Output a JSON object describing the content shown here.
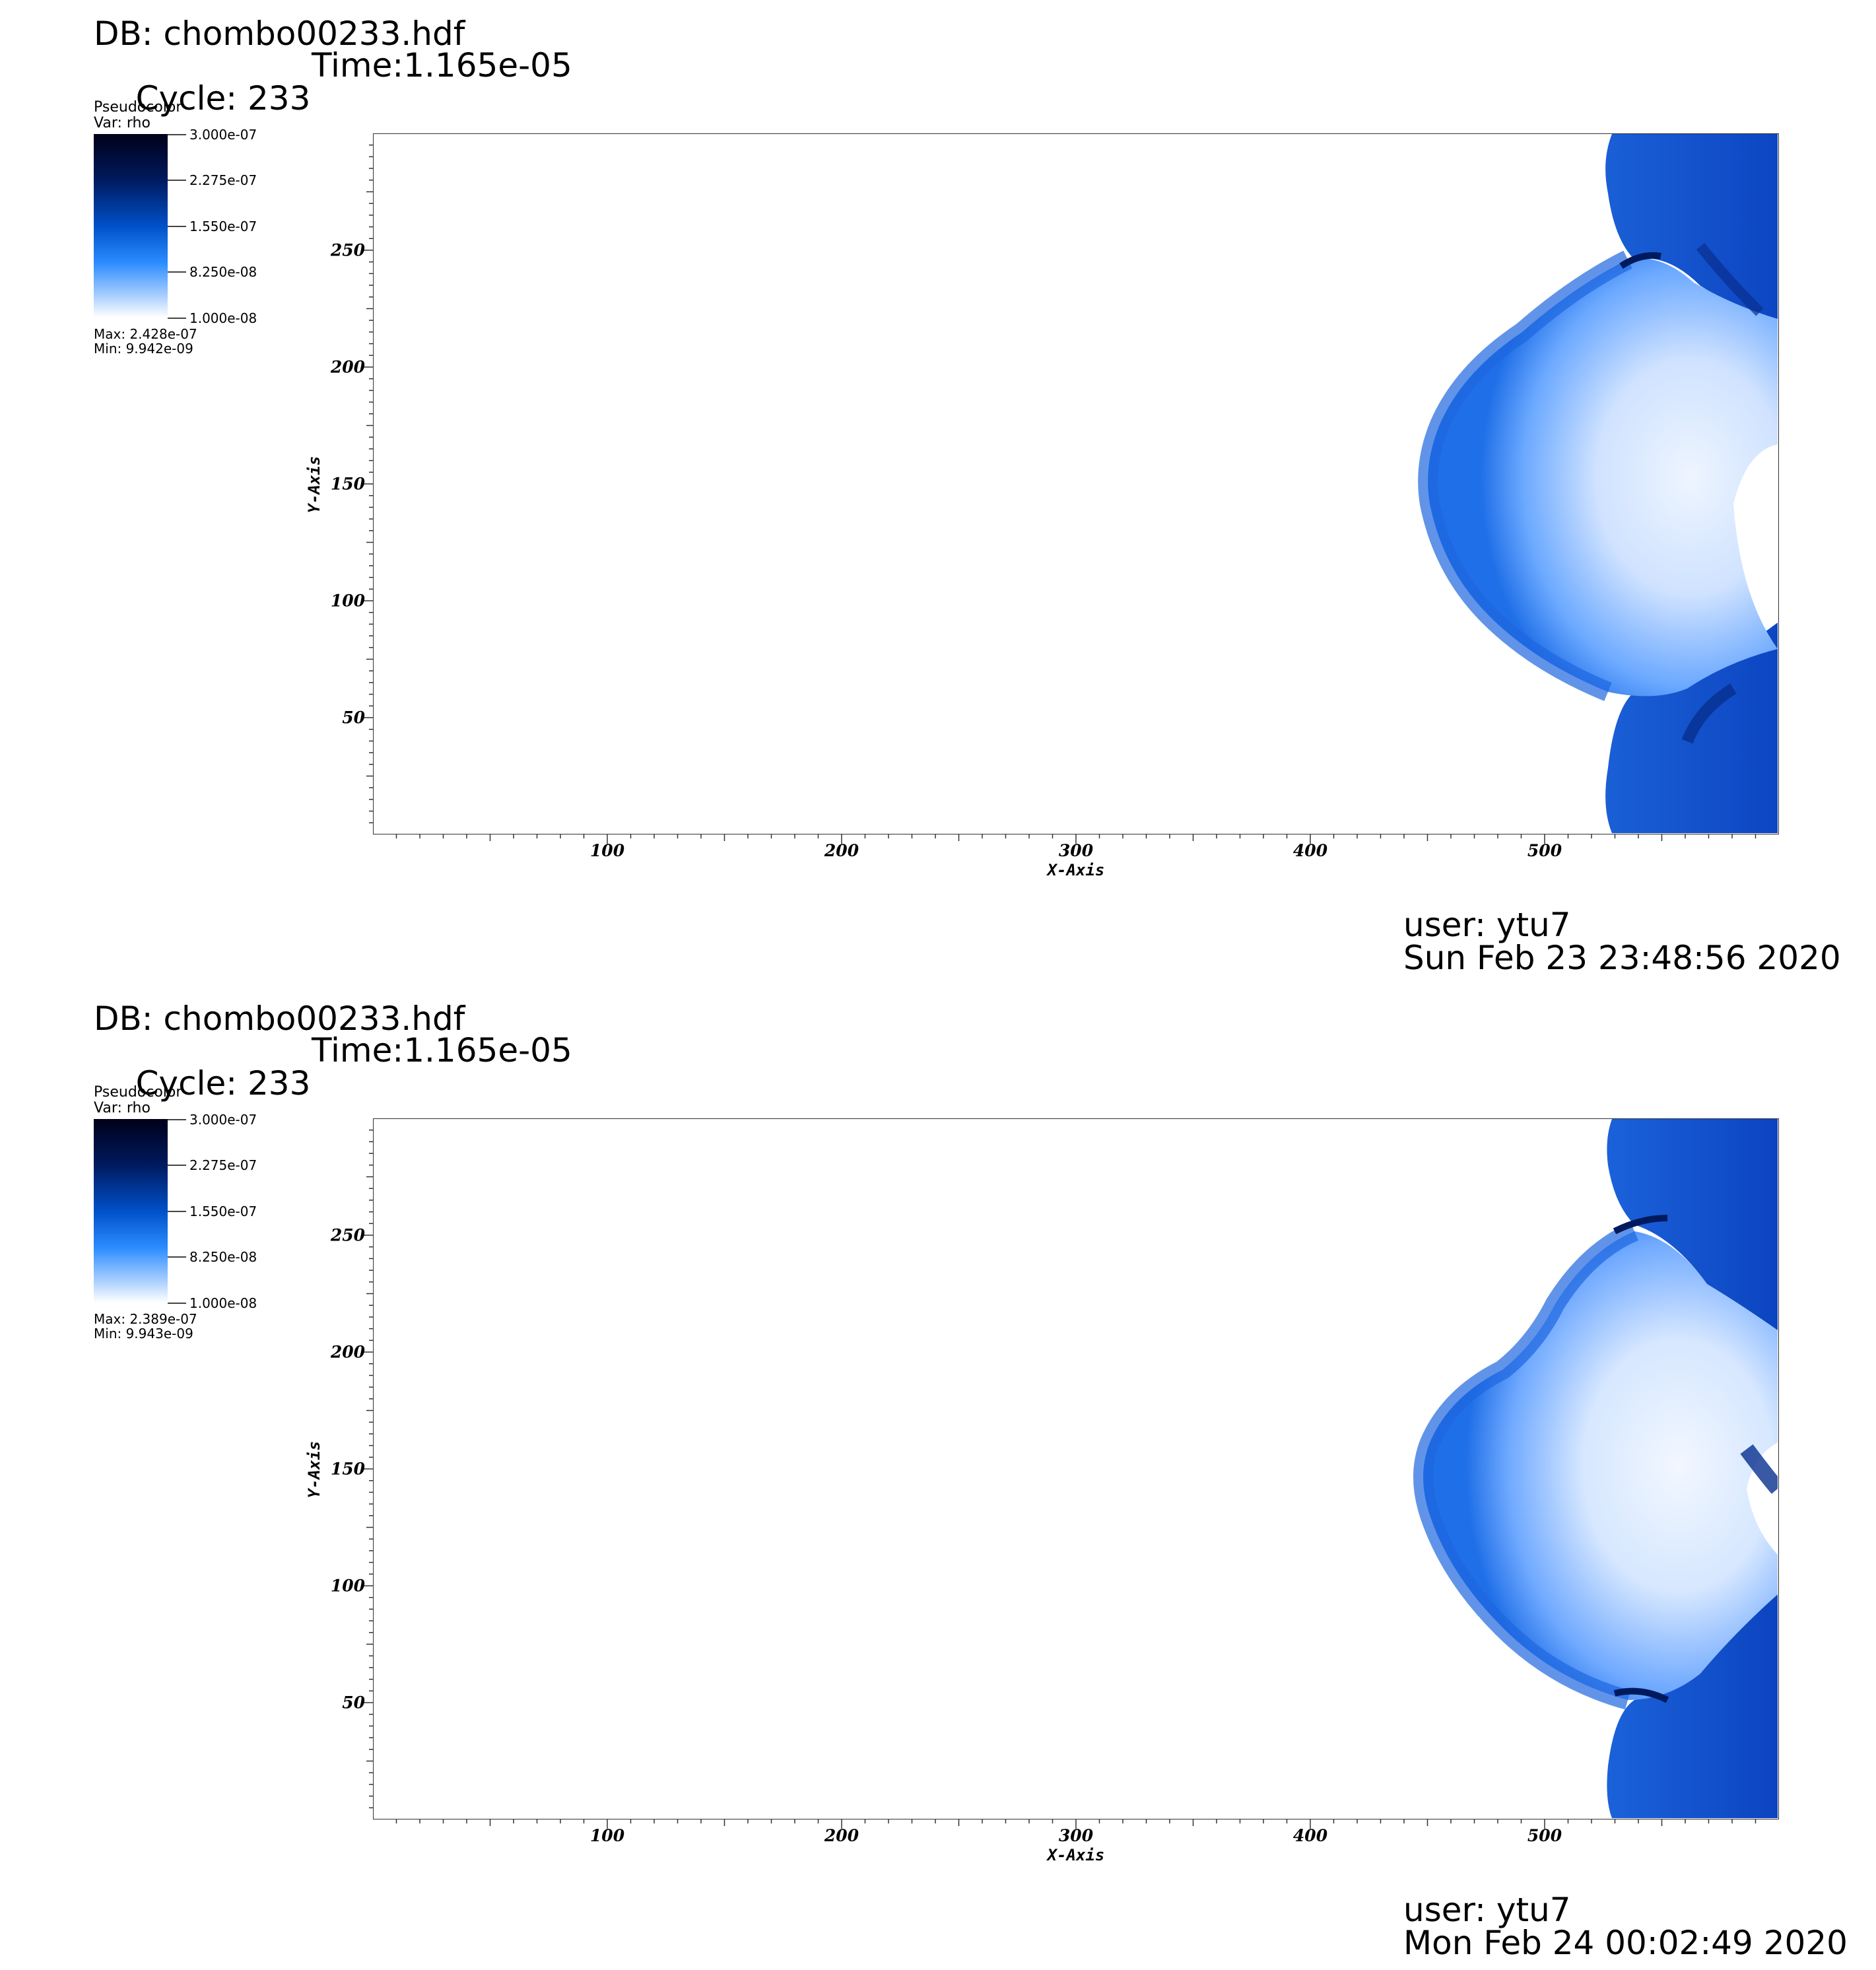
{
  "colors": {
    "colormap": [
      "#00001a",
      "#001a5e",
      "#0050c8",
      "#2b8cff",
      "#a8ceff",
      "#ffffff"
    ],
    "field_dark": "#0a3fb8",
    "field_mid": "#2f7ef0",
    "field_light": "#cfe2ff"
  },
  "chart_data": [
    {
      "type": "heatmap",
      "header": {
        "db": "DB: chombo00233.hdf",
        "cycle": "Cycle: 233",
        "time": "Time:1.165e-05"
      },
      "legend": {
        "title": "Pseudocolor",
        "var": "Var: rho",
        "ticks": [
          "3.000e-07",
          "2.275e-07",
          "1.550e-07",
          "8.250e-08",
          "1.000e-08"
        ],
        "range": [
          1e-08,
          3e-07
        ],
        "max": "Max:  2.428e-07",
        "min": "Min:  9.942e-09"
      },
      "xlabel": "X-Axis",
      "ylabel": "Y-Axis",
      "xlim": [
        0,
        600
      ],
      "ylim": [
        0,
        300
      ],
      "xticks": [
        "100",
        "200",
        "300",
        "400",
        "500"
      ],
      "yticks": [
        "50",
        "100",
        "150",
        "200",
        "250"
      ],
      "footer": {
        "user": "user: ytu7",
        "date": "Sun Feb 23 23:48:56 2020"
      }
    },
    {
      "type": "heatmap",
      "header": {
        "db": "DB: chombo00233.hdf",
        "cycle": "Cycle: 233",
        "time": "Time:1.165e-05"
      },
      "legend": {
        "title": "Pseudocolor",
        "var": "Var: rho",
        "ticks": [
          "3.000e-07",
          "2.275e-07",
          "1.550e-07",
          "8.250e-08",
          "1.000e-08"
        ],
        "range": [
          1e-08,
          3e-07
        ],
        "max": "Max:  2.389e-07",
        "min": "Min:  9.943e-09"
      },
      "xlabel": "X-Axis",
      "ylabel": "Y-Axis",
      "xlim": [
        0,
        600
      ],
      "ylim": [
        0,
        300
      ],
      "xticks": [
        "100",
        "200",
        "300",
        "400",
        "500"
      ],
      "yticks": [
        "50",
        "100",
        "150",
        "200",
        "250"
      ],
      "footer": {
        "user": "user: ytu7",
        "date": "Mon Feb 24 00:02:49 2020"
      }
    }
  ]
}
